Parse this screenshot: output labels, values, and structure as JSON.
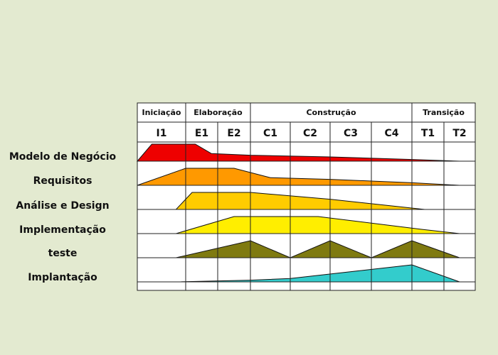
{
  "phases": [
    {
      "label": "Iniciação",
      "iterations": 1
    },
    {
      "label": "Elaboração",
      "iterations": 2
    },
    {
      "label": "Construção",
      "iterations": 4
    },
    {
      "label": "Transição",
      "iterations": 2
    }
  ],
  "iterations": [
    "I1",
    "E1",
    "E2",
    "C1",
    "C2",
    "C3",
    "C4",
    "T1",
    "T2"
  ],
  "disciplines": [
    {
      "label": "Modelo de Negócio",
      "color": "#ee0000",
      "profile": [
        [
          0,
          0
        ],
        [
          0.3,
          1
        ],
        [
          1.3,
          1
        ],
        [
          1.8,
          0.45
        ],
        [
          3,
          0.35
        ],
        [
          5,
          0.25
        ],
        [
          7,
          0.1
        ],
        [
          8.5,
          0
        ]
      ]
    },
    {
      "label": "Requisitos",
      "color": "#ff9900",
      "profile": [
        [
          0,
          0
        ],
        [
          1,
          1
        ],
        [
          2.5,
          1
        ],
        [
          3.5,
          0.45
        ],
        [
          5,
          0.35
        ],
        [
          7,
          0.15
        ],
        [
          8.5,
          0
        ]
      ]
    },
    {
      "label": "Análise e Design",
      "color": "#ffcc00",
      "profile": [
        [
          0.8,
          0
        ],
        [
          1.2,
          1
        ],
        [
          3,
          1
        ],
        [
          5,
          0.6
        ],
        [
          7.4,
          0
        ]
      ]
    },
    {
      "label": "Implementação",
      "color": "#ffee00",
      "profile": [
        [
          0.8,
          0
        ],
        [
          2.5,
          1
        ],
        [
          4.7,
          1
        ],
        [
          7.3,
          0.25
        ],
        [
          8.5,
          0
        ]
      ]
    },
    {
      "label": "teste",
      "color": "#7f7a10",
      "profile": [
        [
          0.8,
          0
        ],
        [
          3,
          1
        ],
        [
          4,
          0
        ],
        [
          5,
          1
        ],
        [
          6,
          0
        ],
        [
          7,
          1
        ],
        [
          8.5,
          0
        ]
      ]
    },
    {
      "label": "Implantação",
      "color": "#33cccc",
      "profile": [
        [
          0.8,
          0
        ],
        [
          3,
          0.1
        ],
        [
          4,
          0.2
        ],
        [
          7,
          1
        ],
        [
          8.5,
          0
        ]
      ]
    }
  ]
}
